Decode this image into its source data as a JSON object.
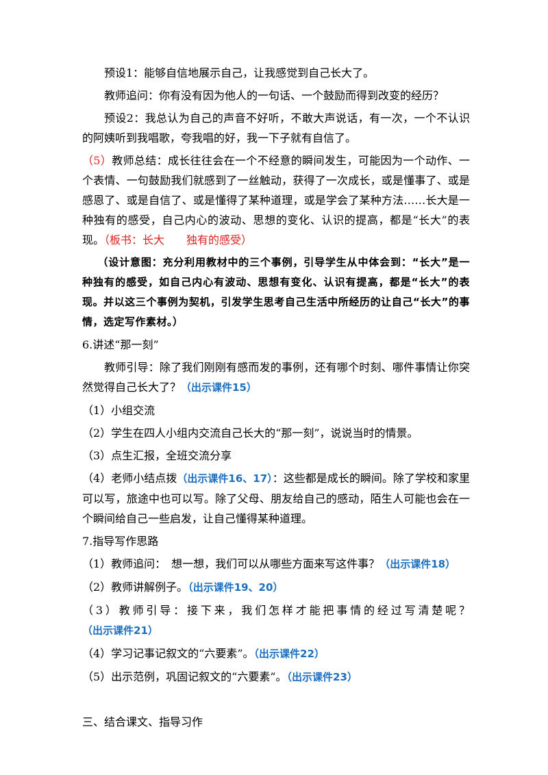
{
  "paragraphs": [
    [
      "预设1：能够自信地展示自己，让我感觉到自己长大了。"
    ],
    [
      "教师追问：你有没有因为他人的一句话、一个鼓励而得到改变的经历？"
    ],
    [
      "预设2：我总认为自己的声音不好听，不敢大声说话，有一次，一个不认识的阿姨听到我唱歌，夸我唱的好，我一下子就有自信了。"
    ],
    [
      "（5）",
      "教师总结：成长往往会在一个不经意的瞬间发生，可能因为一个动作、一个表情、一句鼓励我们就感到了一丝触动，获得了一次成长，或是懂事了、或是感恩了、或是自信了、或是懂得了某种道理，或是学会了某种方法……长大是一种独有的感受，自己内心的波动、思想的变化、认识的提高，都是“长大”的表现。",
      "（板书：长大　　独有的感受）"
    ],
    [
      "（设计意图：充分利用教材中的三个事例，引导学生从中体会到：“长大”是一种独有的感受，如自己内心有波动、思想有变化、认识有提高，都是“长大”的表现。并以这三个事例为契机，引发学生思考自己生活中所经历的让自己“长大”的事情，选定写作素材。）"
    ],
    [
      "6.讲述“那一刻”"
    ],
    [
      "教师引导：除了我们刚刚有感而发的事例，还有哪个时刻、哪件事情让你突然觉得自己长大了？",
      "（出示课件15）"
    ],
    [
      "（1）小组交流"
    ],
    [
      "（2）学生在四人小组内交流自己长大的“那一刻”，说说当时的情景。"
    ],
    [
      "（3）点生汇报，全班交流分享"
    ],
    [
      "（4）老师小结点拨",
      "（出示课件16、17）",
      "：这些都是成长的瞬间。除了学校和家里可以写，旅途中也可以写。除了父母、朋友给自己的感动，陌生人可能也会在一个瞬间给自己一些启发，让自己懂得某种道理。"
    ],
    [
      "7.指导写作思路"
    ],
    [
      "（1）教师追问：　想一想，我们可以从哪些方面来写这件事？",
      "（出示课件18）"
    ],
    [
      "（2）教师讲解例子。",
      "（出示课件19、20）"
    ],
    [
      "（3）教师引导：接下来，我们怎样才能把事情的经过写清楚呢？",
      "（出示课件21）"
    ],
    [
      "（4）学习记事记叙文的“六要素”。",
      "（出示课件22）"
    ],
    [
      "（5）出示范例，巩固记叙文的“六要素”。",
      "（出示课件23）"
    ],
    [
      "三、结合课文、指导习作"
    ]
  ]
}
